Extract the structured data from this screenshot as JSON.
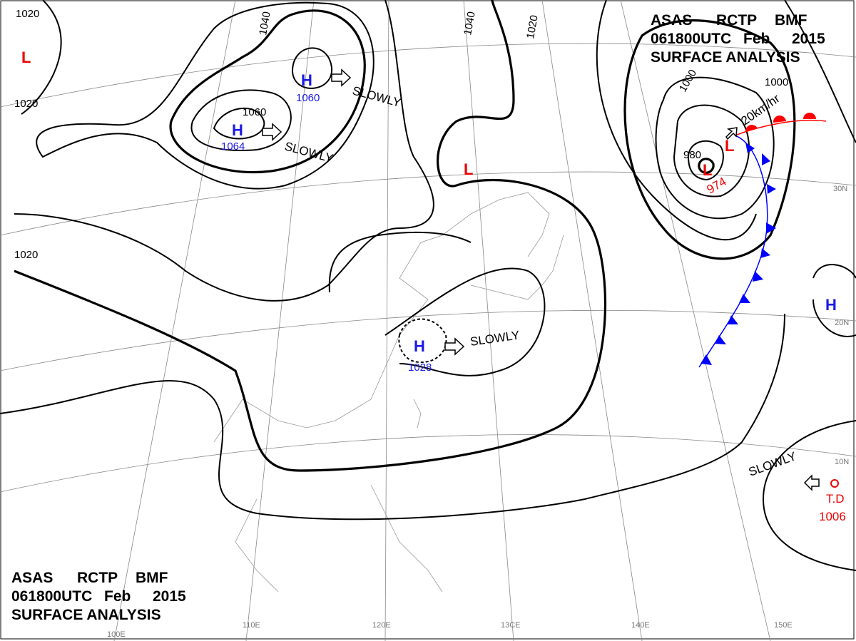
{
  "header": {
    "line1": [
      "ASAS",
      "RCTP",
      "BMF"
    ],
    "line2": [
      "061800UTC",
      "Feb",
      "2015"
    ],
    "line3": "SURFACE ANALYSIS"
  },
  "footer": {
    "line1": [
      "ASAS",
      "RCTP",
      "BMF"
    ],
    "line2": [
      "061800UTC",
      "Feb",
      "2015"
    ],
    "line3": "SURFACE ANALYSIS"
  },
  "colors": {
    "high": "#1a1ae6",
    "low": "#e00000",
    "cold_front": "#0000ff",
    "warm_front": "#ff0000",
    "isobar": "#000000"
  },
  "grid_labels": {
    "lon": [
      "100E",
      "110E",
      "120E",
      "13CE",
      "140E",
      "150E"
    ],
    "lat": [
      "10N",
      "20N",
      "30N"
    ]
  },
  "isobar_labels": [
    "1020",
    "1020",
    "1020",
    "1040",
    "1040",
    "1020",
    "1000",
    "1000",
    "1060",
    "980"
  ],
  "pressure_systems": [
    {
      "type": "H",
      "value": "1060"
    },
    {
      "type": "H",
      "value": "1064"
    },
    {
      "type": "H",
      "value": "1028"
    },
    {
      "type": "H",
      "value": ""
    },
    {
      "type": "L",
      "value": "974"
    },
    {
      "type": "L",
      "value": ""
    },
    {
      "type": "L",
      "value": ""
    },
    {
      "type": "L",
      "value": ""
    },
    {
      "type": "T.D",
      "value": "1006"
    }
  ],
  "movement_labels": [
    "SLOWLY",
    "SLOWLY",
    "SLOWLY",
    "SLOWLY",
    "20km/hr"
  ]
}
